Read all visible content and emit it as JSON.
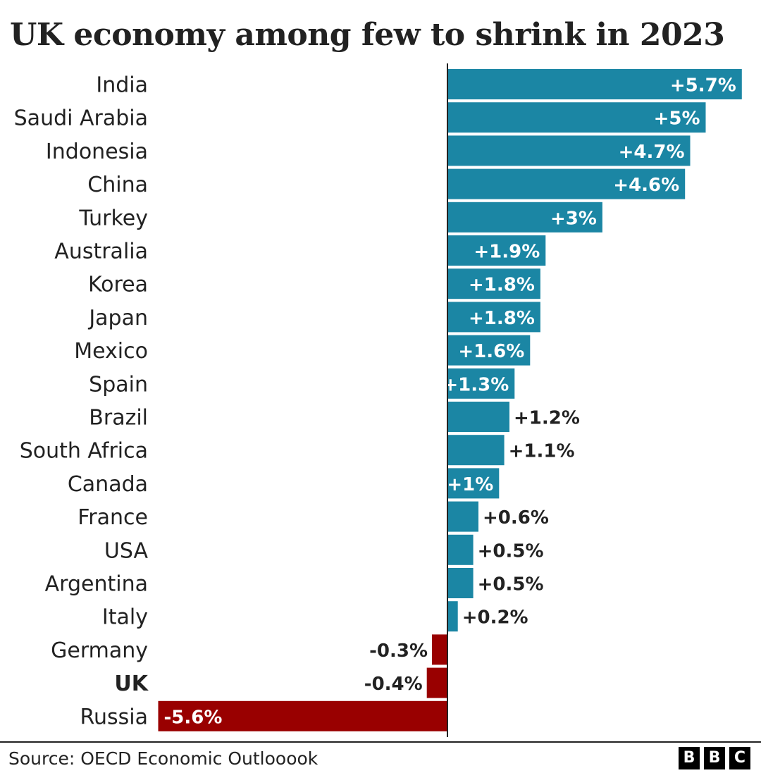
{
  "title": "UK economy among few to shrink in 2023",
  "source": "Source: OECD Economic Outlooook",
  "logo": [
    "B",
    "B",
    "C"
  ],
  "colors": {
    "positive": "#1b86a4",
    "negative": "#990000",
    "text": "#222222",
    "inside_label": "#ffffff",
    "axis": "#222222"
  },
  "chart_data": {
    "type": "bar",
    "orientation": "horizontal",
    "categories": [
      "India",
      "Saudi Arabia",
      "Indonesia",
      "China",
      "Turkey",
      "Australia",
      "Korea",
      "Japan",
      "Mexico",
      "Spain",
      "Brazil",
      "South Africa",
      "Canada",
      "France",
      "USA",
      "Argentina",
      "Italy",
      "Germany",
      "UK",
      "Russia"
    ],
    "values": [
      5.7,
      5,
      4.7,
      4.6,
      3,
      1.9,
      1.8,
      1.8,
      1.6,
      1.3,
      1.2,
      1.1,
      1,
      0.6,
      0.5,
      0.5,
      0.2,
      -0.3,
      -0.4,
      -5.6
    ],
    "data_labels": [
      "+5.7%",
      "+5%",
      "+4.7%",
      "+4.6%",
      "+3%",
      "+1.9%",
      "+1.8%",
      "+1.8%",
      "+1.6%",
      "+1.3%",
      "+1.2%",
      "+1.1%",
      "+1%",
      "+0.6%",
      "+0.5%",
      "+0.5%",
      "+0.2%",
      "-0.3%",
      "-0.4%",
      "-5.6%"
    ],
    "highlight": "UK",
    "unit": "%",
    "xlim": [
      -5.6,
      5.7
    ],
    "grid": false,
    "legend": "none"
  }
}
